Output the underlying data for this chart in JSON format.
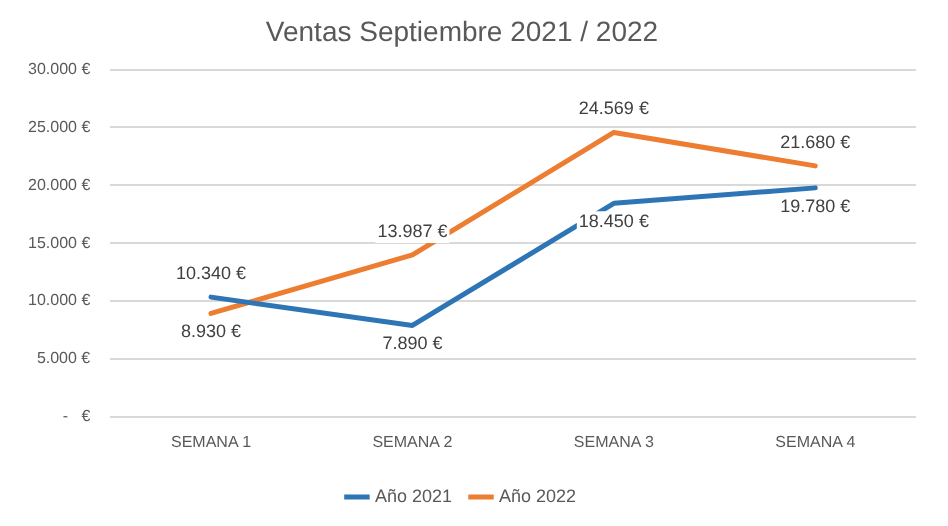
{
  "chart_data": {
    "type": "line",
    "title": "Ventas Septiembre 2021 / 2022",
    "categories": [
      "SEMANA 1",
      "SEMANA 2",
      "SEMANA 3",
      "SEMANA 4"
    ],
    "series": [
      {
        "name": "Año 2021",
        "color": "#2e75b6",
        "values": [
          10340,
          7890,
          18450,
          19780
        ],
        "value_labels": [
          "10.340 €",
          "7.890 €",
          "18.450 €",
          "19.780 €"
        ]
      },
      {
        "name": "Año 2022",
        "color": "#ed7d31",
        "values": [
          8930,
          13987,
          24569,
          21680
        ],
        "value_labels": [
          "8.930 €",
          "13.987 €",
          "24.569 €",
          "21.680 €"
        ]
      }
    ],
    "ylim": [
      0,
      30000
    ],
    "yticks": [
      {
        "value": 0,
        "label": "-   €"
      },
      {
        "value": 5000,
        "label": "5.000 €"
      },
      {
        "value": 10000,
        "label": "10.000 €"
      },
      {
        "value": 15000,
        "label": "15.000 €"
      },
      {
        "value": 20000,
        "label": "20.000 €"
      },
      {
        "value": 25000,
        "label": "25.000 €"
      },
      {
        "value": 30000,
        "label": "30.000 €"
      }
    ],
    "grid": "y",
    "legend": "bottom",
    "marker": "none",
    "line_style": "solid"
  }
}
